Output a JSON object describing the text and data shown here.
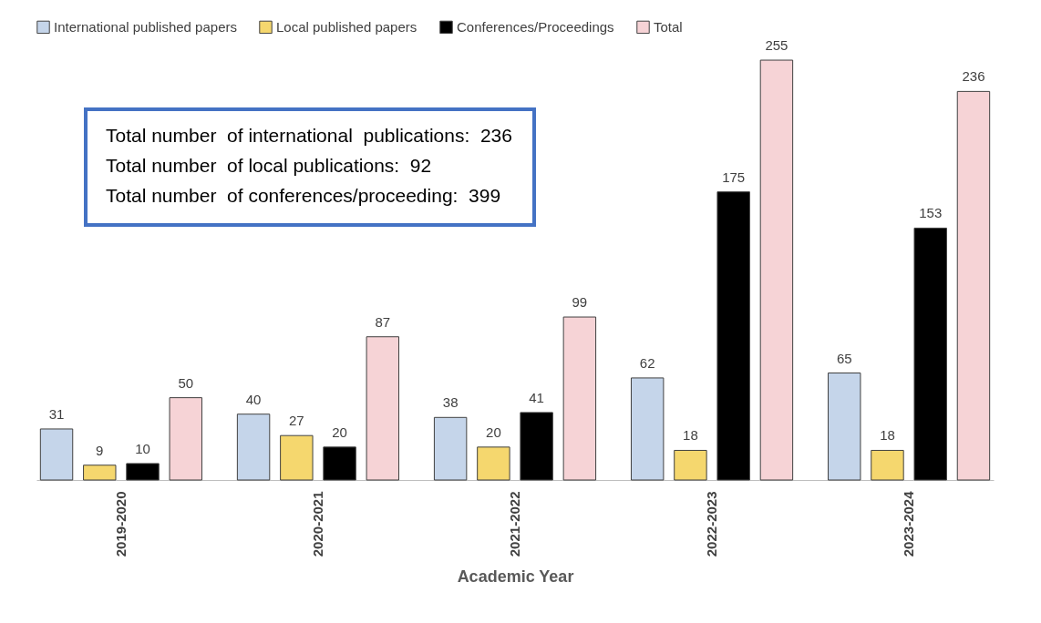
{
  "chart_data": {
    "type": "bar",
    "xlabel": "Academic Year",
    "categories": [
      "2019-2020",
      "2020-2021",
      "2021-2022",
      "2022-2023",
      "2023-2024"
    ],
    "series": [
      {
        "name": "International published papers",
        "color": "#c5d5ea",
        "values": [
          31,
          40,
          38,
          62,
          65
        ]
      },
      {
        "name": "Local published papers",
        "color": "#f5d76e",
        "values": [
          9,
          27,
          20,
          18,
          18
        ]
      },
      {
        "name": "Conferences/Proceedings",
        "color": "#000000",
        "values": [
          10,
          20,
          41,
          175,
          153
        ]
      },
      {
        "name": "Total",
        "color": "#f6d3d6",
        "values": [
          50,
          87,
          99,
          255,
          236
        ]
      }
    ],
    "data_labels": true,
    "legend": "top",
    "grid": false,
    "annotations": [
      "Total number  of international  publications:  236",
      "Total number  of local publications:  92",
      "Total number  of conferences/proceeding:  399"
    ]
  }
}
